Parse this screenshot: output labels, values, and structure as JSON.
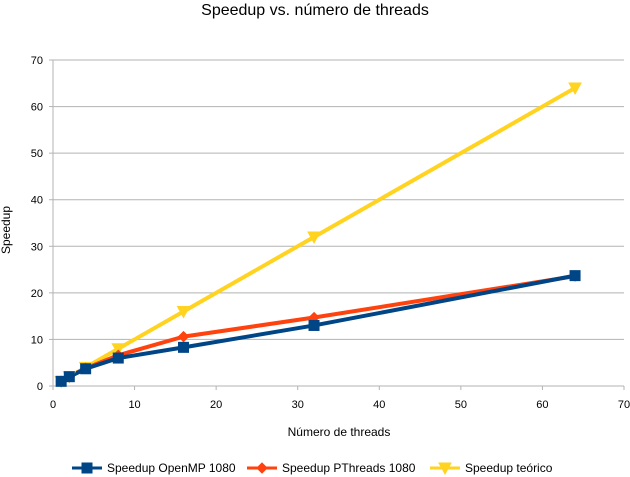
{
  "chart_data": {
    "type": "line",
    "title": "Speedup vs. número de threads",
    "xlabel": "Número de threads",
    "ylabel": "Speedup",
    "xlim": [
      0,
      70
    ],
    "ylim": [
      0,
      70
    ],
    "xticks": [
      0,
      10,
      20,
      30,
      40,
      50,
      60,
      70
    ],
    "yticks": [
      0,
      10,
      20,
      30,
      40,
      50,
      60,
      70
    ],
    "grid": true,
    "legend_position": "bottom",
    "series": [
      {
        "name": "Speedup OpenMP 1080",
        "color": "#004586",
        "marker": "square",
        "x": [
          1,
          2,
          4,
          8,
          16,
          32,
          64
        ],
        "y": [
          1,
          2,
          3.7,
          6,
          8.3,
          13,
          23.7
        ]
      },
      {
        "name": "Speedup PThreads 1080",
        "color": "#ff420e",
        "marker": "diamond",
        "x": [
          1,
          2,
          4,
          8,
          16,
          32,
          64
        ],
        "y": [
          1,
          2,
          3.8,
          6.6,
          10.6,
          14.7,
          23.6
        ]
      },
      {
        "name": "Speedup teórico",
        "color": "#ffd320",
        "marker": "triangle-down",
        "x": [
          1,
          2,
          4,
          8,
          16,
          32,
          64
        ],
        "y": [
          1,
          2,
          4,
          8,
          16,
          32,
          64
        ]
      }
    ]
  }
}
